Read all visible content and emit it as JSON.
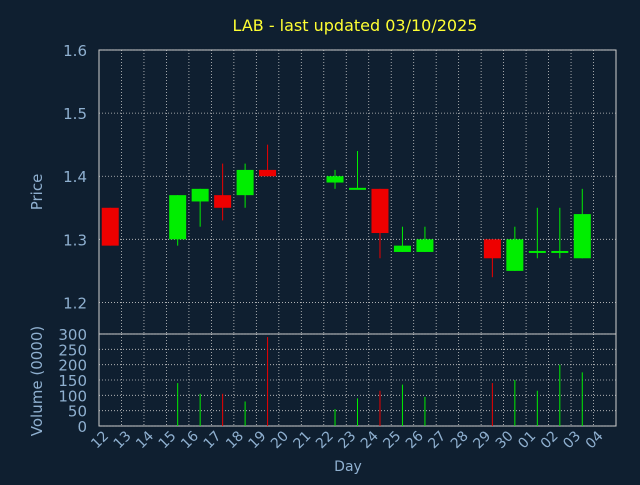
{
  "chart_data": {
    "type": "candlestick",
    "title": "LAB - last updated 03/10/2025",
    "xlabel": "Day",
    "price_ylabel": "Price",
    "volume_ylabel": "Volume (0000)",
    "price_ylim": [
      1.15,
      1.6
    ],
    "price_yticks": [
      1.2,
      1.3,
      1.4,
      1.5,
      1.6
    ],
    "volume_ylim": [
      0,
      300
    ],
    "volume_yticks": [
      0,
      50,
      100,
      150,
      200,
      250,
      300
    ],
    "grid": true,
    "x_labels": [
      "12",
      "13",
      "14",
      "15",
      "16",
      "17",
      "18",
      "19",
      "20",
      "21",
      "22",
      "23",
      "24",
      "25",
      "26",
      "27",
      "28",
      "29",
      "30",
      "01",
      "02",
      "03",
      "04"
    ],
    "colors": {
      "background": "#0f1f30",
      "title": "#ffff33",
      "axis_text": "#8fb0d0",
      "up": "#00ee00",
      "down": "#ee0000",
      "grid": "#c8c8c8"
    },
    "candles": [
      {
        "day": "12",
        "open": 1.35,
        "high": 1.35,
        "low": 1.29,
        "close": 1.29,
        "volume": 0
      },
      {
        "day": "15",
        "open": 1.3,
        "high": 1.37,
        "low": 1.29,
        "close": 1.37,
        "volume": 140
      },
      {
        "day": "16",
        "open": 1.36,
        "high": 1.38,
        "low": 1.32,
        "close": 1.38,
        "volume": 105
      },
      {
        "day": "17",
        "open": 1.37,
        "high": 1.42,
        "low": 1.33,
        "close": 1.35,
        "volume": 105
      },
      {
        "day": "18",
        "open": 1.37,
        "high": 1.42,
        "low": 1.35,
        "close": 1.41,
        "volume": 80
      },
      {
        "day": "19",
        "open": 1.41,
        "high": 1.45,
        "low": 1.4,
        "close": 1.4,
        "volume": 290
      },
      {
        "day": "22",
        "open": 1.39,
        "high": 1.41,
        "low": 1.38,
        "close": 1.4,
        "volume": 55
      },
      {
        "day": "23",
        "open": 1.38,
        "high": 1.44,
        "low": 1.38,
        "close": 1.38,
        "volume": 90
      },
      {
        "day": "24",
        "open": 1.38,
        "high": 1.38,
        "low": 1.27,
        "close": 1.31,
        "volume": 115
      },
      {
        "day": "25",
        "open": 1.28,
        "high": 1.32,
        "low": 1.28,
        "close": 1.29,
        "volume": 135
      },
      {
        "day": "26",
        "open": 1.28,
        "high": 1.32,
        "low": 1.28,
        "close": 1.3,
        "volume": 95
      },
      {
        "day": "29",
        "open": 1.3,
        "high": 1.3,
        "low": 1.24,
        "close": 1.27,
        "volume": 140
      },
      {
        "day": "30",
        "open": 1.25,
        "high": 1.32,
        "low": 1.25,
        "close": 1.3,
        "volume": 150
      },
      {
        "day": "01",
        "open": 1.28,
        "high": 1.35,
        "low": 1.27,
        "close": 1.28,
        "volume": 115
      },
      {
        "day": "02",
        "open": 1.28,
        "high": 1.35,
        "low": 1.27,
        "close": 1.28,
        "volume": 200
      },
      {
        "day": "03",
        "open": 1.27,
        "high": 1.38,
        "low": 1.27,
        "close": 1.34,
        "volume": 175
      }
    ]
  }
}
